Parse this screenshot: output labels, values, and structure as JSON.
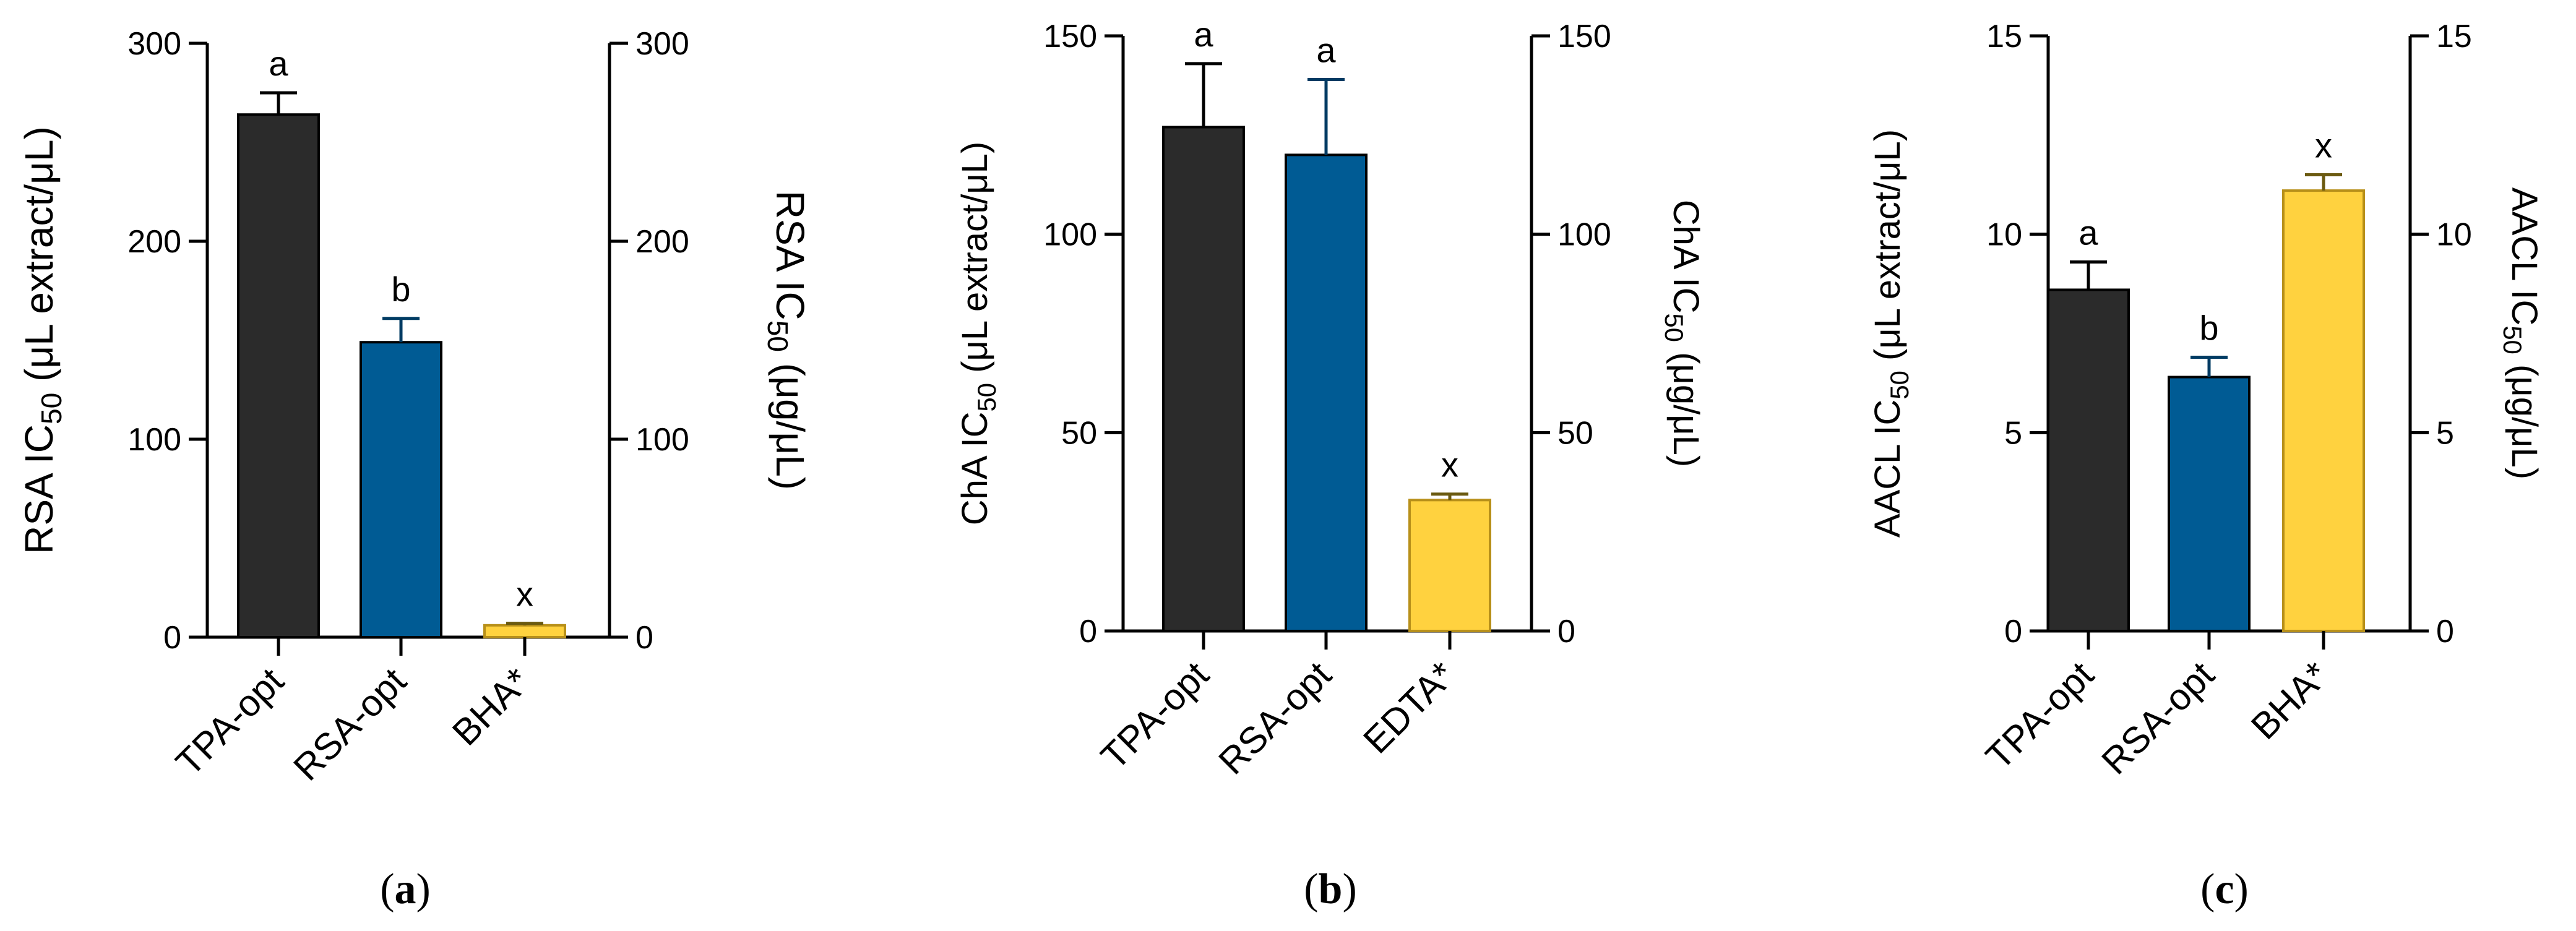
{
  "figure": {
    "colors": {
      "TPA-opt": "#2b2b2b",
      "RSA-opt": "#005b94",
      "reference": "#ffd23f",
      "reference_stroke": "#b8901a",
      "error_dark": "#000000",
      "error_blue": "#003b63",
      "error_ref": "#6b5a10"
    }
  },
  "chart_data": [
    {
      "type": "bar",
      "panel": "a",
      "panel_label": "a",
      "categories": [
        "TPA-opt",
        "RSA-opt",
        "BHA*"
      ],
      "values": [
        264,
        149,
        6
      ],
      "errors": [
        11,
        12,
        1
      ],
      "significance": [
        "a",
        "b",
        "x"
      ],
      "ylabel_left": {
        "main": "RSA IC",
        "sub": "50",
        "rest": " (μL extract/μL)"
      },
      "ylabel_right": {
        "main": "RSA IC",
        "sub": "50",
        "rest": " (μg/μL)"
      },
      "ylim": [
        0,
        300
      ],
      "yticks": [
        0,
        100,
        200,
        300
      ]
    },
    {
      "type": "bar",
      "panel": "b",
      "panel_label": "b",
      "categories": [
        "TPA-opt",
        "RSA-opt",
        "EDTA*"
      ],
      "values": [
        127,
        120,
        33
      ],
      "errors": [
        16,
        19,
        1.5
      ],
      "significance": [
        "a",
        "a",
        "x"
      ],
      "ylabel_left": {
        "main": "ChA IC",
        "sub": "50",
        "rest": " (μL extract/μL)"
      },
      "ylabel_right": {
        "main": "ChA IC",
        "sub": "50",
        "rest": " (μg/μL)"
      },
      "ylim": [
        0,
        150
      ],
      "yticks": [
        0,
        50,
        100,
        150
      ]
    },
    {
      "type": "bar",
      "panel": "c",
      "panel_label": "c",
      "categories": [
        "TPA-opt",
        "RSA-opt",
        "BHA*"
      ],
      "values": [
        8.6,
        6.4,
        11.1
      ],
      "errors": [
        0.7,
        0.5,
        0.4
      ],
      "significance": [
        "a",
        "b",
        "x"
      ],
      "ylabel_left": {
        "main": "AACL IC",
        "sub": "50",
        "rest": " (μL extract/μL)"
      },
      "ylabel_right": {
        "main": "AACL IC",
        "sub": "50",
        "rest": " (μg/μL)"
      },
      "ylim": [
        0,
        15
      ],
      "yticks": [
        0,
        5,
        10,
        15
      ]
    }
  ]
}
